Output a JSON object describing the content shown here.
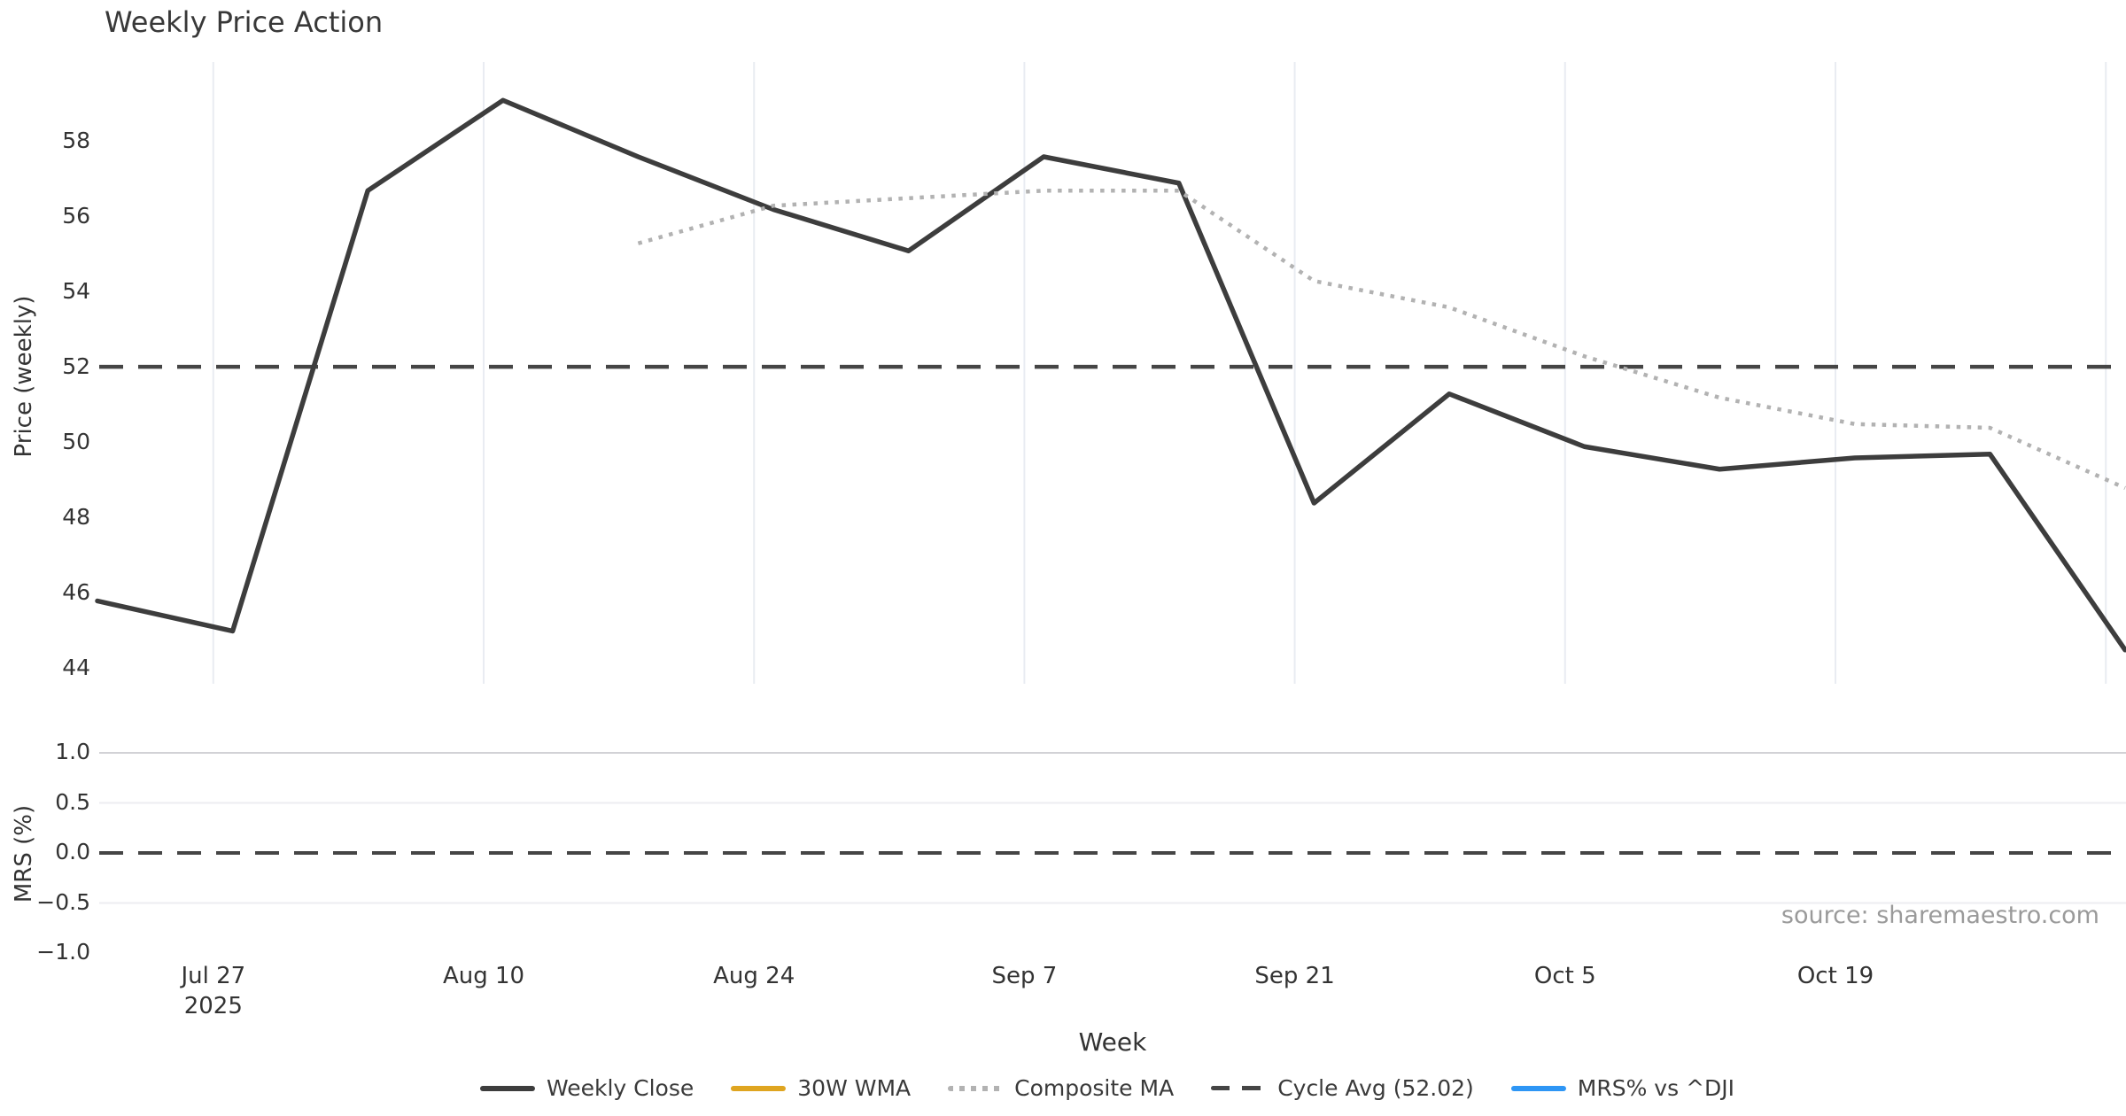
{
  "page": {
    "title": "Weekly Price Action",
    "source_note": "source: sharemaestro.com"
  },
  "axes": {
    "price": {
      "label": "Price (weekly)",
      "ticks": [
        58,
        56,
        54,
        52,
        50,
        48,
        46,
        44
      ]
    },
    "mrs": {
      "label": "MRS (%)",
      "ticks": [
        {
          "label": "1.0",
          "value": 1.0
        },
        {
          "label": "0.5",
          "value": 0.5
        },
        {
          "label": "0.0",
          "value": 0.0
        },
        {
          "label": "−0.5",
          "value": -0.5
        },
        {
          "label": "−1.0",
          "value": -1.0
        }
      ]
    },
    "x": {
      "label": "Week",
      "ticks": [
        {
          "label": "Jul 27",
          "sublabel": "2025"
        },
        {
          "label": "Aug 10",
          "sublabel": ""
        },
        {
          "label": "Aug 24",
          "sublabel": ""
        },
        {
          "label": "Sep 7",
          "sublabel": ""
        },
        {
          "label": "Sep 21",
          "sublabel": ""
        },
        {
          "label": "Oct 5",
          "sublabel": ""
        },
        {
          "label": "Oct 19",
          "sublabel": ""
        }
      ],
      "gridline_count": 8
    }
  },
  "legend": [
    {
      "label": "Weekly Close",
      "color": "#3d3d3d",
      "style": "solid"
    },
    {
      "label": "30W WMA",
      "color": "#dfa520",
      "style": "solid"
    },
    {
      "label": "Composite MA",
      "color": "#b2b2b2",
      "style": "dotted"
    },
    {
      "label": "Cycle Avg (52.02)",
      "color": "#454545",
      "style": "dashed"
    },
    {
      "label": "MRS% vs ^DJI",
      "color": "#2e96f5",
      "style": "solid"
    }
  ],
  "chart_data": [
    {
      "type": "line",
      "panel": "price",
      "title": "Weekly Price Action",
      "ylabel": "Price (weekly)",
      "ylim": [
        43.5,
        60.2
      ],
      "grid": "vertical",
      "x_dates": [
        "2025-07-21",
        "2025-07-28",
        "2025-08-04",
        "2025-08-11",
        "2025-08-18",
        "2025-08-25",
        "2025-09-01",
        "2025-09-08",
        "2025-09-15",
        "2025-09-22",
        "2025-09-29",
        "2025-10-06",
        "2025-10-13",
        "2025-10-20",
        "2025-10-27",
        "2025-11-03"
      ],
      "x_tick_labels": [
        "Jul 27 2025",
        "Aug 10",
        "Aug 24",
        "Sep 7",
        "Sep 21",
        "Oct 5",
        "Oct 19"
      ],
      "series": [
        {
          "name": "Weekly Close",
          "style": "solid",
          "color": "#3d3d3d",
          "width": 5.5,
          "values": [
            45.8,
            45.0,
            56.7,
            59.1,
            57.6,
            56.2,
            55.1,
            57.6,
            56.9,
            48.4,
            51.3,
            49.9,
            49.3,
            49.6,
            49.7,
            44.5
          ]
        },
        {
          "name": "30W WMA",
          "style": "solid",
          "color": "#dfa520",
          "width": 5,
          "values": []
        },
        {
          "name": "Composite MA",
          "style": "dotted",
          "color": "#b2b2b2",
          "width": 4.5,
          "values": [
            null,
            null,
            null,
            null,
            55.3,
            56.3,
            56.5,
            56.7,
            56.7,
            54.3,
            53.6,
            52.3,
            51.2,
            50.5,
            50.4,
            48.8
          ]
        }
      ],
      "reference_lines": [
        {
          "name": "Cycle Avg",
          "value": 52.02,
          "style": "dashed",
          "color": "#454545"
        }
      ]
    },
    {
      "type": "line",
      "panel": "mrs",
      "ylabel": "MRS (%)",
      "ylim": [
        -1.15,
        1.3
      ],
      "grid": "horizontal",
      "yticks": [
        1.0,
        0.5,
        0.0,
        -0.5,
        -1.0
      ],
      "series": [
        {
          "name": "MRS% vs ^DJI",
          "style": "solid",
          "color": "#2e96f5",
          "width": 5,
          "values": []
        }
      ],
      "reference_lines": [
        {
          "name": "zero",
          "value": 0.0,
          "style": "dashed",
          "color": "#454545"
        }
      ]
    }
  ]
}
